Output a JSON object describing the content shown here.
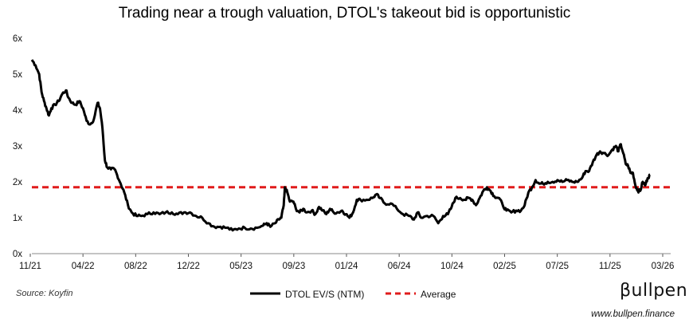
{
  "chart_data": {
    "type": "line",
    "title": "Trading near a trough valuation, DTOL's takeout bid is opportunistic",
    "xlabel": "",
    "ylabel": "",
    "ylim": [
      0,
      6
    ],
    "y_ticks": [
      "0x",
      "1x",
      "2x",
      "3x",
      "4x",
      "5x",
      "6x"
    ],
    "x_ticks": [
      "11/21",
      "04/22",
      "08/22",
      "12/22",
      "05/23",
      "09/23",
      "01/24",
      "06/24",
      "10/24",
      "02/25",
      "07/25",
      "11/25",
      "03/26"
    ],
    "x_range": [
      0,
      52.5
    ],
    "series": [
      {
        "name": "DTOL EV/S (NTM)",
        "color": "#000000",
        "style": "solid",
        "points": [
          [
            0.0,
            5.4
          ],
          [
            0.3,
            5.25
          ],
          [
            0.6,
            5.0
          ],
          [
            0.8,
            4.5
          ],
          [
            1.0,
            4.25
          ],
          [
            1.2,
            4.05
          ],
          [
            1.4,
            3.85
          ],
          [
            1.6,
            4.05
          ],
          [
            1.9,
            4.15
          ],
          [
            2.2,
            4.25
          ],
          [
            2.5,
            4.45
          ],
          [
            2.8,
            4.55
          ],
          [
            3.0,
            4.35
          ],
          [
            3.3,
            4.2
          ],
          [
            3.6,
            4.15
          ],
          [
            3.9,
            4.25
          ],
          [
            4.2,
            4.05
          ],
          [
            4.5,
            3.7
          ],
          [
            4.8,
            3.6
          ],
          [
            5.1,
            3.75
          ],
          [
            5.4,
            4.2
          ],
          [
            5.6,
            4.05
          ],
          [
            5.8,
            3.5
          ],
          [
            6.0,
            2.6
          ],
          [
            6.2,
            2.4
          ],
          [
            6.5,
            2.35
          ],
          [
            6.8,
            2.35
          ],
          [
            7.0,
            2.2
          ],
          [
            7.3,
            1.95
          ],
          [
            7.6,
            1.7
          ],
          [
            7.9,
            1.35
          ],
          [
            8.2,
            1.15
          ],
          [
            8.6,
            1.05
          ],
          [
            9.0,
            1.05
          ],
          [
            9.5,
            1.1
          ],
          [
            10.0,
            1.15
          ],
          [
            10.5,
            1.1
          ],
          [
            11.0,
            1.15
          ],
          [
            11.5,
            1.15
          ],
          [
            12.0,
            1.1
          ],
          [
            12.5,
            1.15
          ],
          [
            13.0,
            1.15
          ],
          [
            13.5,
            1.05
          ],
          [
            14.0,
            1.0
          ],
          [
            14.5,
            0.85
          ],
          [
            15.0,
            0.75
          ],
          [
            15.5,
            0.75
          ],
          [
            16.0,
            0.72
          ],
          [
            16.5,
            0.65
          ],
          [
            17.0,
            0.7
          ],
          [
            17.5,
            0.72
          ],
          [
            18.0,
            0.7
          ],
          [
            18.5,
            0.72
          ],
          [
            19.0,
            0.78
          ],
          [
            19.3,
            0.85
          ],
          [
            19.6,
            0.75
          ],
          [
            20.0,
            0.85
          ],
          [
            20.3,
            0.95
          ],
          [
            20.5,
            1.0
          ],
          [
            20.7,
            1.35
          ],
          [
            20.8,
            1.85
          ],
          [
            21.0,
            1.7
          ],
          [
            21.2,
            1.45
          ],
          [
            21.5,
            1.45
          ],
          [
            21.7,
            1.25
          ],
          [
            22.0,
            1.15
          ],
          [
            22.3,
            1.25
          ],
          [
            22.6,
            1.15
          ],
          [
            23.0,
            1.2
          ],
          [
            23.3,
            1.1
          ],
          [
            23.6,
            1.3
          ],
          [
            23.9,
            1.2
          ],
          [
            24.2,
            1.1
          ],
          [
            24.5,
            1.25
          ],
          [
            24.8,
            1.15
          ],
          [
            25.2,
            1.15
          ],
          [
            25.5,
            1.2
          ],
          [
            25.8,
            1.1
          ],
          [
            26.1,
            1.0
          ],
          [
            26.4,
            1.15
          ],
          [
            26.7,
            1.5
          ],
          [
            27.0,
            1.5
          ],
          [
            27.5,
            1.5
          ],
          [
            28.0,
            1.55
          ],
          [
            28.3,
            1.65
          ],
          [
            28.6,
            1.55
          ],
          [
            29.0,
            1.4
          ],
          [
            29.5,
            1.4
          ],
          [
            30.0,
            1.25
          ],
          [
            30.5,
            1.1
          ],
          [
            31.0,
            1.05
          ],
          [
            31.4,
            0.95
          ],
          [
            31.7,
            1.15
          ],
          [
            32.0,
            1.0
          ],
          [
            32.5,
            1.05
          ],
          [
            33.0,
            1.05
          ],
          [
            33.4,
            0.85
          ],
          [
            33.8,
            1.05
          ],
          [
            34.2,
            1.1
          ],
          [
            34.5,
            1.3
          ],
          [
            34.8,
            1.55
          ],
          [
            35.2,
            1.55
          ],
          [
            35.6,
            1.5
          ],
          [
            35.9,
            1.55
          ],
          [
            36.2,
            1.5
          ],
          [
            36.5,
            1.35
          ],
          [
            36.8,
            1.55
          ],
          [
            37.1,
            1.75
          ],
          [
            37.4,
            1.85
          ],
          [
            37.7,
            1.75
          ],
          [
            38.0,
            1.6
          ],
          [
            38.4,
            1.55
          ],
          [
            38.7,
            1.35
          ],
          [
            39.0,
            1.2
          ],
          [
            39.4,
            1.15
          ],
          [
            39.8,
            1.2
          ],
          [
            40.2,
            1.2
          ],
          [
            40.5,
            1.35
          ],
          [
            40.8,
            1.7
          ],
          [
            41.1,
            1.85
          ],
          [
            41.4,
            2.05
          ],
          [
            41.7,
            1.95
          ],
          [
            42.0,
            1.95
          ],
          [
            42.4,
            2.0
          ],
          [
            42.8,
            2.0
          ],
          [
            43.2,
            2.05
          ],
          [
            43.6,
            2.0
          ],
          [
            44.0,
            2.05
          ],
          [
            44.4,
            2.0
          ],
          [
            44.8,
            2.0
          ],
          [
            45.2,
            2.1
          ],
          [
            45.5,
            2.3
          ],
          [
            45.8,
            2.3
          ],
          [
            46.1,
            2.55
          ],
          [
            46.4,
            2.75
          ],
          [
            46.7,
            2.85
          ],
          [
            47.0,
            2.8
          ],
          [
            47.4,
            2.75
          ],
          [
            47.7,
            2.9
          ],
          [
            48.0,
            3.0
          ],
          [
            48.2,
            2.85
          ],
          [
            48.4,
            3.05
          ],
          [
            48.6,
            2.8
          ],
          [
            48.8,
            2.5
          ],
          [
            49.0,
            2.45
          ],
          [
            49.2,
            2.25
          ],
          [
            49.4,
            2.25
          ],
          [
            49.6,
            1.9
          ],
          [
            49.8,
            1.75
          ],
          [
            50.0,
            1.75
          ],
          [
            50.2,
            2.0
          ],
          [
            50.4,
            1.9
          ],
          [
            50.6,
            2.1
          ],
          [
            50.8,
            2.2
          ]
        ]
      },
      {
        "name": "Average",
        "color": "#e01b1b",
        "style": "dashed",
        "value": 1.85
      }
    ],
    "legend": [
      "DTOL EV/S (NTM)",
      "Average"
    ],
    "legend_position": "bottom-center"
  },
  "footer": {
    "source": "Source: Koyfin",
    "logo_text": "βullpen",
    "website": "www.bullpen.finance"
  }
}
